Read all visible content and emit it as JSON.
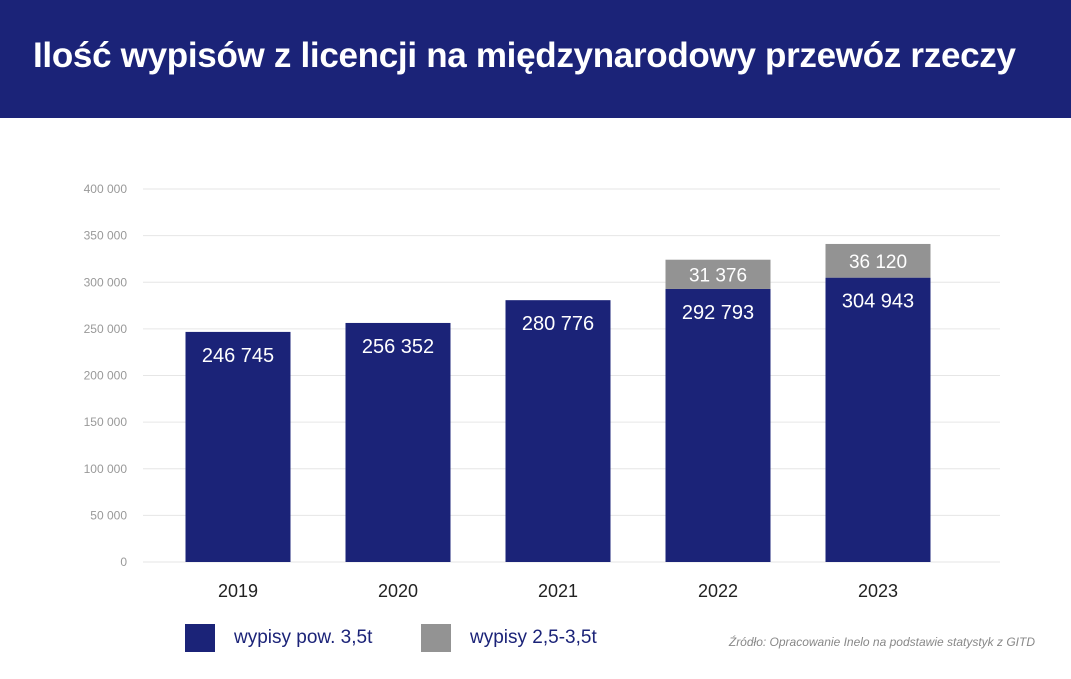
{
  "header": {
    "title": "Ilość wypisów z licencji na międzynarodowy przewóz rzeczy"
  },
  "source": "Źródło: Opracowanie Inelo na podstawie statystyk z GITD",
  "chart_data": {
    "type": "bar",
    "stacked": true,
    "title": "Ilość wypisów z licencji na międzynarodowy przewóz rzeczy",
    "categories": [
      "2019",
      "2020",
      "2021",
      "2022",
      "2023"
    ],
    "series": [
      {
        "name": "wypisy pow. 3,5t",
        "color": "#1b2378",
        "values": [
          246745,
          256352,
          280776,
          292793,
          304943
        ],
        "labels": [
          "246 745",
          "256 352",
          "280 776",
          "292 793",
          "304 943"
        ]
      },
      {
        "name": "wypisy 2,5-3,5t",
        "color": "#939393",
        "values": [
          0,
          0,
          0,
          31376,
          36120
        ],
        "labels": [
          "",
          "",
          "",
          "31 376",
          "36 120"
        ]
      }
    ],
    "yticks": [
      0,
      50000,
      100000,
      150000,
      200000,
      250000,
      300000,
      350000,
      400000
    ],
    "ytick_labels": [
      "0",
      "50 000",
      "100 000",
      "150 000",
      "200 000",
      "250 000",
      "300 000",
      "350 000",
      "400 000"
    ],
    "ylim": [
      0,
      400000
    ],
    "grid": true,
    "legend": "bottom-left"
  }
}
